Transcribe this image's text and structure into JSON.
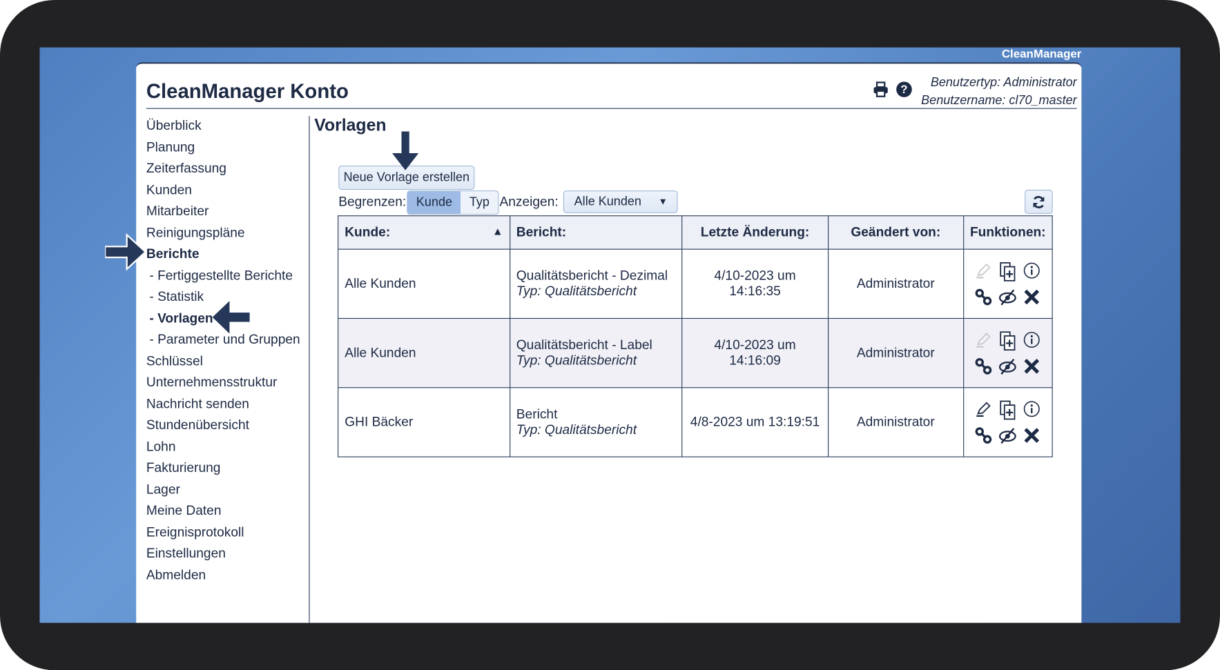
{
  "brand": "CleanManager",
  "header": {
    "title": "CleanManager Konto",
    "user_type": "Benutzertyp: Administrator",
    "user_name": "Benutzername: cl70_master",
    "icons": [
      "print-icon",
      "help-icon"
    ]
  },
  "sidebar": {
    "items": [
      {
        "label": "Überblick"
      },
      {
        "label": "Planung"
      },
      {
        "label": "Zeiterfassung"
      },
      {
        "label": "Kunden"
      },
      {
        "label": "Mitarbeiter"
      },
      {
        "label": "Reinigungspläne"
      },
      {
        "label": "Berichte",
        "active": true
      },
      {
        "label": "- Fertiggestellte Berichte",
        "sub": true
      },
      {
        "label": "- Statistik",
        "sub": true
      },
      {
        "label": "- Vorlagen",
        "sub": true,
        "active": true
      },
      {
        "label": "- Parameter und Gruppen",
        "sub": true
      },
      {
        "label": "Schlüssel"
      },
      {
        "label": "Unternehmensstruktur"
      },
      {
        "label": "Nachricht senden"
      },
      {
        "label": "Stundenübersicht"
      },
      {
        "label": "Lohn"
      },
      {
        "label": "Fakturierung"
      },
      {
        "label": "Lager"
      },
      {
        "label": "Meine Daten"
      },
      {
        "label": "Ereignisprotokoll"
      },
      {
        "label": "Einstellungen"
      },
      {
        "label": "Abmelden"
      }
    ]
  },
  "main": {
    "heading": "Vorlagen",
    "new_button": "Neue Vorlage erstellen",
    "limit_label": "Begrenzen:",
    "limit_options": [
      "Kunde",
      "Typ"
    ],
    "limit_selected": "Kunde",
    "show_label": "Anzeigen:",
    "show_value": "Alle Kunden",
    "columns": [
      "Kunde:",
      "Bericht:",
      "Letzte Änderung:",
      "Geändert von:",
      "Funktionen:"
    ],
    "sort": "Kunde ascending",
    "rows": [
      {
        "kunde": "Alle Kunden",
        "bericht": "Qualitätsbericht - Dezimal",
        "typ": "Typ: Qualitätsbericht",
        "datum": "4/10-2023 um 14:16:35",
        "von": "Administrator",
        "edit_enabled": false
      },
      {
        "kunde": "Alle Kunden",
        "bericht": "Qualitätsbericht - Label",
        "typ": "Typ: Qualitätsbericht",
        "datum": "4/10-2023 um 14:16:09",
        "von": "Administrator",
        "edit_enabled": false
      },
      {
        "kunde": "GHI Bäcker",
        "bericht": "Bericht",
        "typ": "Typ: Qualitätsbericht",
        "datum": "4/8-2023 um 13:19:51",
        "von": "Administrator",
        "edit_enabled": true
      }
    ]
  },
  "colors": {
    "text": "#1d2a44",
    "arrow": "#26385a",
    "desktop": "#5a8ac9",
    "button": "#dfe8f5",
    "active_segment": "#9dbbe4"
  }
}
